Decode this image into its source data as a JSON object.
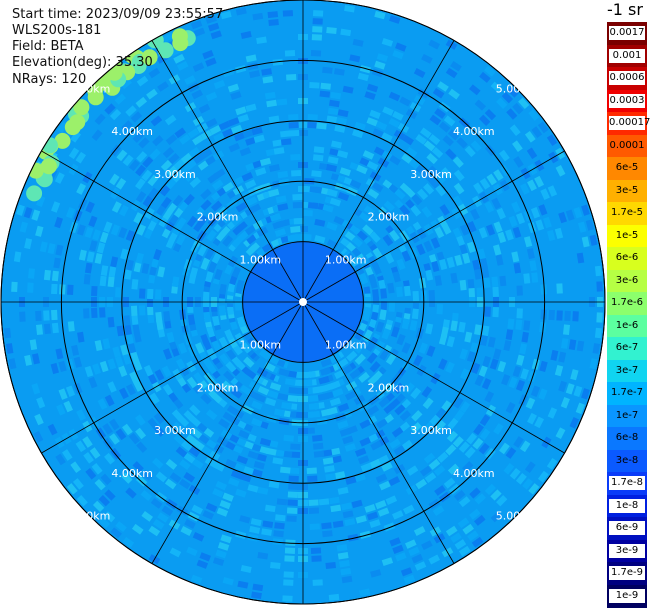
{
  "header": {
    "start_time": "Start time: 2023/09/09 23:55:57",
    "device": "WLS200s-181",
    "field": "Field: BETA",
    "elevation": "Elevation(deg): 35.30",
    "nrays": "NRays: 120"
  },
  "plot": {
    "range_rings_km": [
      1,
      2,
      3,
      4,
      5
    ],
    "ring_labels": [
      "1.00km",
      "2.00km",
      "3.00km",
      "4.00km",
      "5.00km"
    ],
    "spoke_angles_deg": [
      0,
      30,
      60,
      90,
      120,
      150,
      180,
      210,
      240,
      270,
      300,
      330
    ],
    "background_color": "#0a9cf2"
  },
  "colorbar": {
    "title": "-1 sr",
    "labels": [
      "0.0017",
      "0.001",
      "0.0006",
      "0.0003",
      "0.00017",
      "0.0001",
      "6e-5",
      "3e-5",
      "1.7e-5",
      "1e-5",
      "6e-6",
      "3e-6",
      "1.7e-6",
      "1e-6",
      "6e-7",
      "3e-7",
      "1.7e-7",
      "1e-7",
      "6e-8",
      "3e-8",
      "1.7e-8",
      "1e-8",
      "6e-9",
      "3e-9",
      "1.7e-9",
      "1e-9"
    ],
    "colors": [
      "#7a0000",
      "#a00000",
      "#c80000",
      "#f00000",
      "#ff2a00",
      "#ff5a00",
      "#ff8800",
      "#ffb000",
      "#ffd800",
      "#fcff00",
      "#d8ff1e",
      "#b6ff44",
      "#8cff6c",
      "#5cffa0",
      "#32f2d0",
      "#10d4f0",
      "#00b4ff",
      "#0a96ff",
      "#0a78ff",
      "#0a5aff",
      "#0a3cf8",
      "#0020e0",
      "#0010c0",
      "#0000a0",
      "#000080",
      "#000060"
    ]
  }
}
